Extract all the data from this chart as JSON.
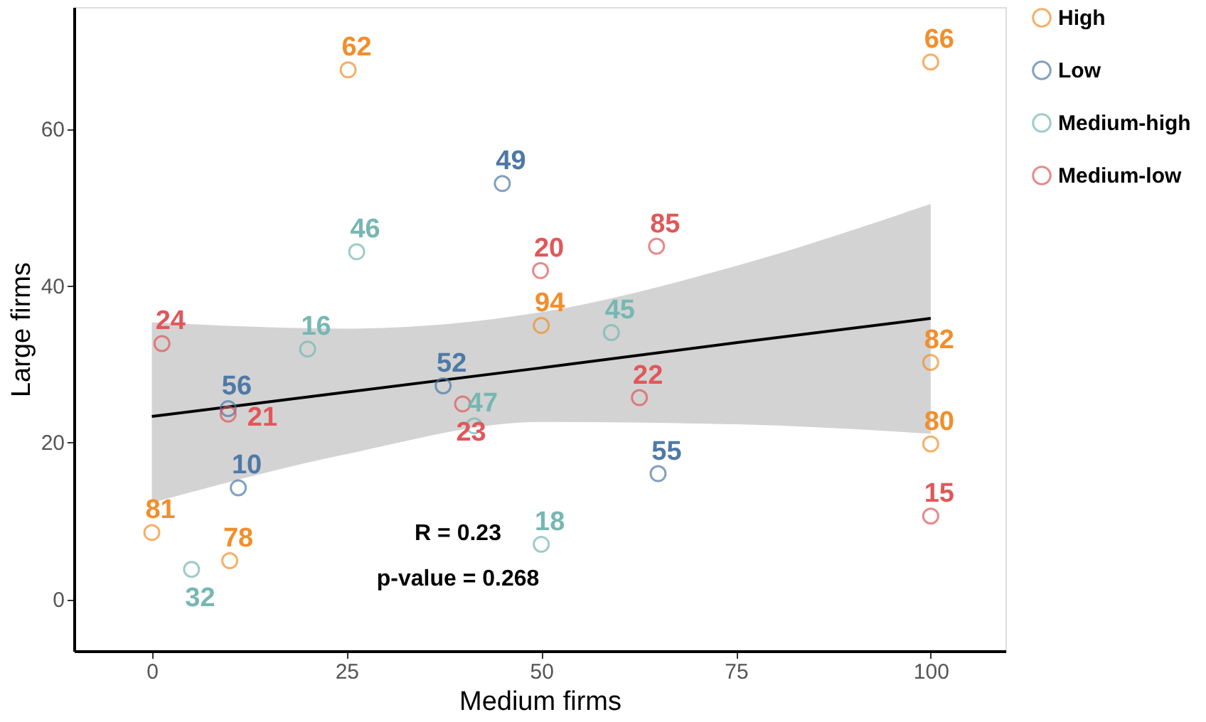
{
  "chart_data": {
    "type": "scatter",
    "xlabel": "Medium firms",
    "ylabel": "Large firms",
    "xlim": [
      -10,
      109.6
    ],
    "ylim": [
      -6.6,
      75.5
    ],
    "xticks": [
      0,
      25,
      50,
      75,
      100
    ],
    "yticks": [
      0,
      20,
      40,
      60
    ],
    "grid": false,
    "legend": "right",
    "annotations": [
      "R =  0.23",
      "p-value =  0.268",
      {
        "text": "62",
        "x": 25.2,
        "y": 67.5
      },
      {
        "text": "66",
        "x": 100,
        "y": 68.5
      },
      {
        "text": "94",
        "x": 50,
        "y": 34.9
      },
      {
        "text": "82",
        "x": 100,
        "y": 30.2
      },
      {
        "text": "80",
        "x": 100,
        "y": 19.8
      },
      {
        "text": "81",
        "x": 0,
        "y": 8.5
      },
      {
        "text": "78",
        "x": 10,
        "y": 4.9
      },
      {
        "text": "49",
        "x": 45,
        "y": 53
      },
      {
        "text": "56",
        "x": 9.8,
        "y": 24.3
      },
      {
        "text": "52",
        "x": 37.4,
        "y": 27.2
      },
      {
        "text": "10",
        "x": 11.1,
        "y": 14.2
      },
      {
        "text": "55",
        "x": 65,
        "y": 16.0
      },
      {
        "text": "46",
        "x": 26.3,
        "y": 44.3
      },
      {
        "text": "16",
        "x": 20,
        "y": 31.9
      },
      {
        "text": "45",
        "x": 59,
        "y": 34
      },
      {
        "text": "47",
        "x": 41.4,
        "y": 22.1
      },
      {
        "text": "32",
        "x": 5.1,
        "y": 3.8
      },
      {
        "text": "18",
        "x": 50,
        "y": 7.0
      },
      {
        "text": "20",
        "x": 49.9,
        "y": 41.9
      },
      {
        "text": "85",
        "x": 64.8,
        "y": 45
      },
      {
        "text": "24",
        "x": 1.3,
        "y": 32.6
      },
      {
        "text": "21",
        "x": 9.8,
        "y": 23.6
      },
      {
        "text": "23",
        "x": 39.9,
        "y": 24.9
      },
      {
        "text": "22",
        "x": 62.6,
        "y": 25.7
      },
      {
        "text": "15",
        "x": 100,
        "y": 10.6
      }
    ],
    "series": [
      {
        "name": "High",
        "color": "#f28e2b",
        "marker": "circle",
        "x": [
          25.2,
          100,
          50,
          100,
          100,
          0,
          10
        ],
        "values": [
          67.5,
          68.5,
          34.9,
          30.2,
          19.8,
          8.5,
          4.9
        ]
      },
      {
        "name": "Low",
        "color": "#4e79a7",
        "marker": "circle",
        "x": [
          45,
          9.8,
          37.4,
          11.1,
          65
        ],
        "values": [
          53,
          24.3,
          27.2,
          14.2,
          16.0
        ]
      },
      {
        "name": "Medium-high",
        "color": "#76b7b2",
        "marker": "circle",
        "x": [
          26.3,
          20,
          59,
          41.4,
          5.1,
          50
        ],
        "values": [
          44.3,
          31.9,
          34,
          22.1,
          3.8,
          7.0
        ]
      },
      {
        "name": "Medium-low",
        "color": "#e15759",
        "marker": "circle",
        "x": [
          49.9,
          64.8,
          1.3,
          9.8,
          39.9,
          62.6,
          100
        ],
        "values": [
          41.9,
          45,
          32.6,
          23.6,
          24.9,
          25.7,
          10.6
        ]
      },
      {
        "color": "#000000",
        "type": "line",
        "marker": "none",
        "x": [
          0,
          25,
          50,
          75,
          100
        ],
        "values": [
          23.3,
          26.4,
          29.5,
          32.7,
          35.8
        ],
        "lower": [
          12.3,
          18.5,
          22.6,
          22.3,
          21.1
        ],
        "upper": [
          35.3,
          34.5,
          36.6,
          42.5,
          50.4
        ]
      }
    ]
  }
}
